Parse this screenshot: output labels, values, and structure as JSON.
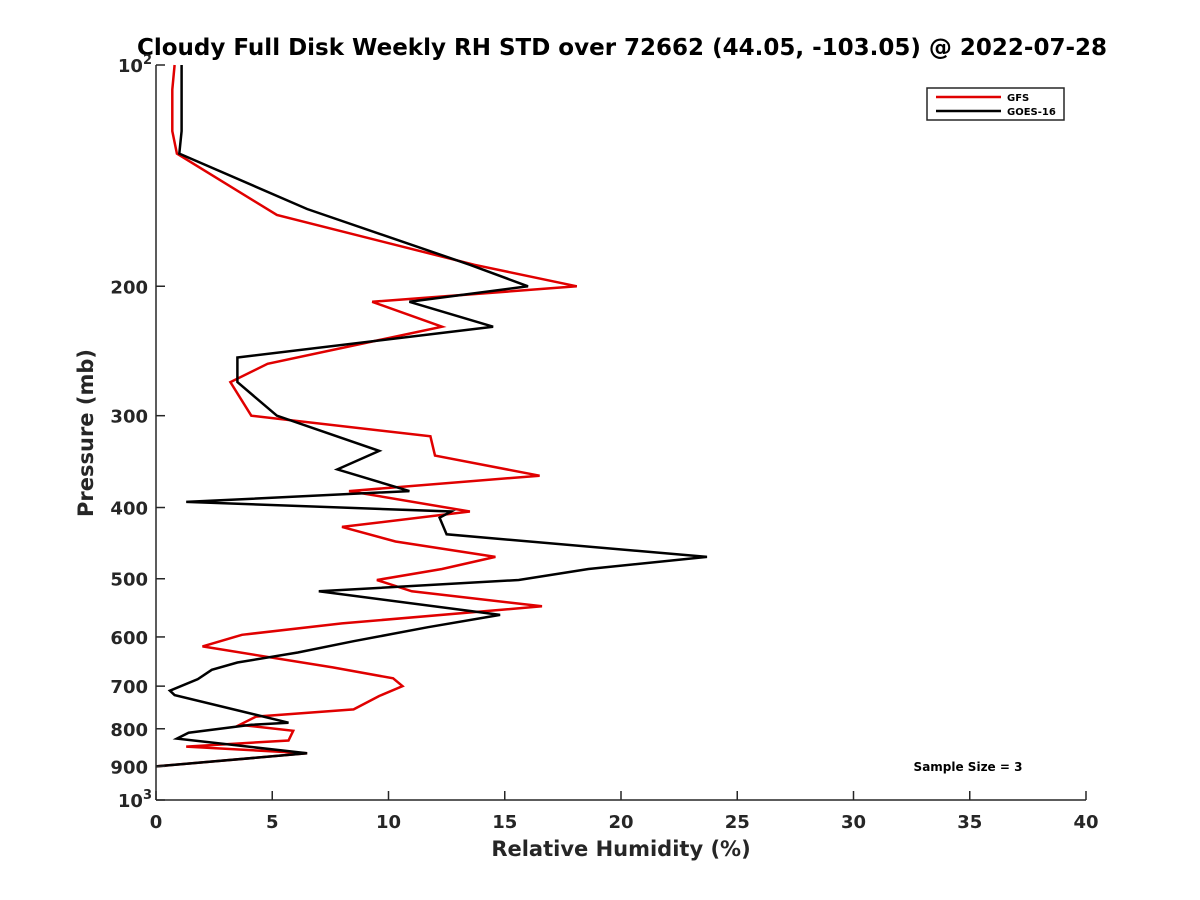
{
  "chart_data": {
    "type": "line",
    "title": "Cloudy Full Disk Weekly RH STD over 72662 (44.05, -103.05) @ 2022-07-28",
    "xlabel": "Relative Humidity (%)",
    "ylabel": "Pressure (mb)",
    "xlim": [
      0,
      40
    ],
    "ylim": [
      100,
      1000
    ],
    "yscale": "log",
    "y_inverted": true,
    "grid": false,
    "x_ticks": [
      0,
      5,
      10,
      15,
      20,
      25,
      30,
      35,
      40
    ],
    "y_ticks": [
      {
        "value": 100,
        "label": "10",
        "sup": "2"
      },
      {
        "value": 200,
        "label": "200"
      },
      {
        "value": 300,
        "label": "300"
      },
      {
        "value": 400,
        "label": "400"
      },
      {
        "value": 500,
        "label": "500"
      },
      {
        "value": 600,
        "label": "600"
      },
      {
        "value": 700,
        "label": "700"
      },
      {
        "value": 800,
        "label": "800"
      },
      {
        "value": 900,
        "label": "900"
      },
      {
        "value": 1000,
        "label": "10",
        "sup": "3"
      }
    ],
    "legend_position": "top-right",
    "annotation": "Sample Size = 3",
    "series": [
      {
        "name": "GFS",
        "color": "#e00000",
        "x": [
          0.8,
          0.7,
          0.7,
          0.7,
          0.9,
          5.2,
          13.7,
          18.1,
          9.3,
          12.3,
          4.8,
          3.2,
          4.1,
          11.8,
          12.0,
          16.5,
          8.3,
          13.5,
          8.0,
          10.3,
          14.6,
          12.3,
          9.5,
          11.0,
          16.6,
          8.0,
          3.7,
          2.0,
          7.6,
          10.2,
          10.6,
          9.6,
          8.5,
          4.3,
          3.6,
          5.9,
          5.7,
          1.3,
          6.5,
          0.0
        ],
        "y": [
          100,
          108,
          115,
          123,
          132,
          160,
          187,
          200,
          210,
          227,
          255,
          270,
          300,
          320,
          340,
          362,
          380,
          405,
          425,
          445,
          467,
          485,
          502,
          520,
          545,
          575,
          596,
          618,
          660,
          683,
          700,
          722,
          753,
          770,
          790,
          805,
          830,
          846,
          864,
          900
        ]
      },
      {
        "name": "GOES-16",
        "color": "#000000",
        "x": [
          1.1,
          1.1,
          1.1,
          1.1,
          1.0,
          6.5,
          13.5,
          16.0,
          10.9,
          14.5,
          3.5,
          3.5,
          3.5,
          5.2,
          9.6,
          7.8,
          10.9,
          1.3,
          12.7,
          12.2,
          12.5,
          23.7,
          18.6,
          15.6,
          7.0,
          14.8,
          11.7,
          8.5,
          6.1,
          3.5,
          2.4,
          1.8,
          0.6,
          0.8,
          5.7,
          4.1,
          1.4,
          0.9,
          6.5,
          0.0
        ],
        "y": [
          100,
          108,
          115,
          123,
          132,
          157,
          187,
          200,
          210,
          227,
          250,
          262,
          270,
          300,
          335,
          355,
          380,
          393,
          405,
          413,
          435,
          467,
          485,
          502,
          520,
          560,
          582,
          608,
          630,
          650,
          665,
          685,
          710,
          720,
          785,
          790,
          810,
          825,
          864,
          900
        ]
      }
    ]
  }
}
